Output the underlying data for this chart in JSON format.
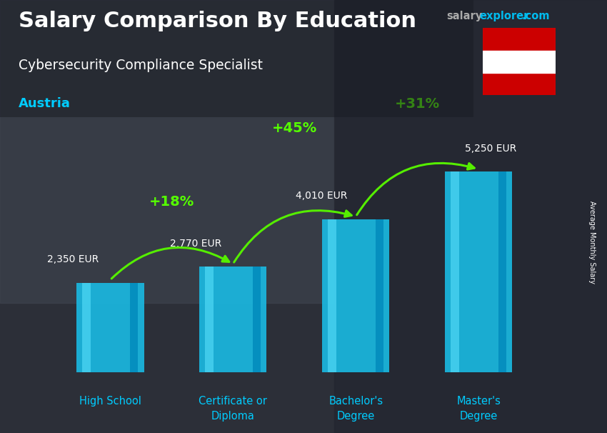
{
  "title_line1": "Salary Comparison By Education",
  "subtitle": "Cybersecurity Compliance Specialist",
  "country": "Austria",
  "ylabel": "Average Monthly Salary",
  "categories": [
    "High School",
    "Certificate or\nDiploma",
    "Bachelor's\nDegree",
    "Master's\nDegree"
  ],
  "values": [
    2350,
    2770,
    4010,
    5250
  ],
  "value_labels": [
    "2,350 EUR",
    "2,770 EUR",
    "4,010 EUR",
    "5,250 EUR"
  ],
  "pct_labels": [
    "+18%",
    "+45%",
    "+31%"
  ],
  "bar_color": "#1ab8e0",
  "bar_color_light": "#4fd8f5",
  "bar_color_dark": "#0088bb",
  "bg_color": "#3a3d47",
  "title_color": "#ffffff",
  "subtitle_color": "#ffffff",
  "country_color": "#00ccff",
  "value_label_color": "#ffffff",
  "pct_color": "#55ff00",
  "arrow_color": "#55ee00",
  "site_salary_color": "#aaaaaa",
  "site_explorer_color": "#00bbee",
  "site_com_color": "#aaaaaa",
  "flag_red": "#cc0000",
  "flag_white": "#ffffff",
  "ylim_max": 6800,
  "bar_width": 0.55
}
